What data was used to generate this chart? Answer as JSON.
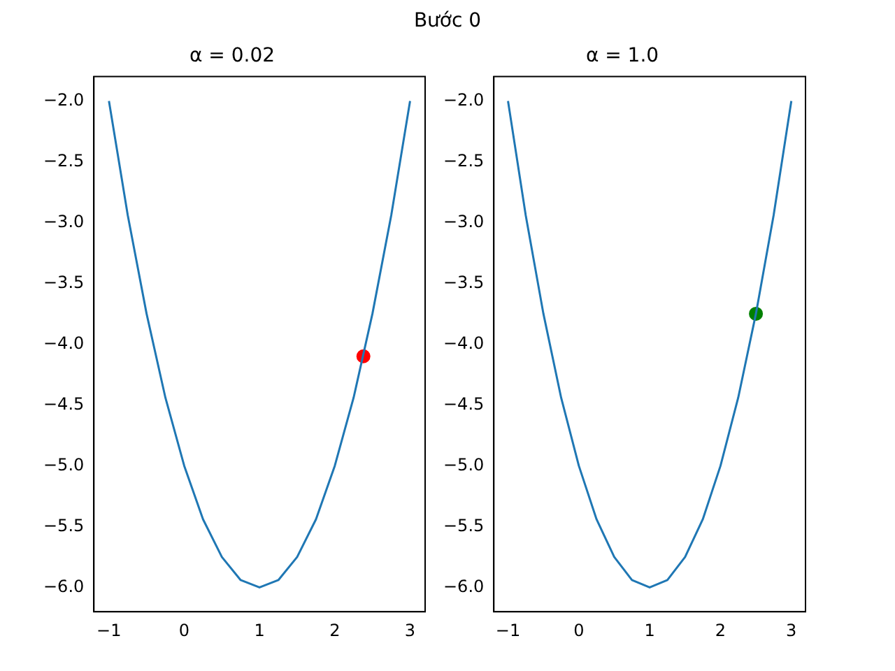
{
  "chart_data": [
    {
      "type": "line",
      "title": "α = 0.02",
      "annotations": [
        "Bước 0"
      ],
      "grid": false,
      "legend": false,
      "xlim": [
        -1.2,
        3.2
      ],
      "xticks": [
        {
          "value": -1,
          "label": "−1"
        },
        0,
        1,
        2,
        3
      ],
      "ylim": [
        -6.2,
        -1.8
      ],
      "yticks": [
        {
          "value": -6,
          "label": "−6.0"
        },
        {
          "value": -5.5,
          "label": "−5.5"
        },
        {
          "value": -5,
          "label": "−5.0"
        },
        {
          "value": -4.5,
          "label": "−4.5"
        },
        {
          "value": -4,
          "label": "−4.0"
        },
        {
          "value": -3.5,
          "label": "−3.5"
        },
        {
          "value": -3,
          "label": "−3.0"
        },
        {
          "value": -2.5,
          "label": "−2.5"
        },
        {
          "value": -2,
          "label": "−2.0"
        }
      ],
      "series": [
        {
          "color": "#1f77b4",
          "marker": "none",
          "x": [
            -1,
            -0.75,
            -0.5,
            -0.25,
            0,
            0.25,
            0.5,
            0.75,
            1,
            1.25,
            1.5,
            1.75,
            2,
            2.25,
            2.5,
            2.75,
            3
          ],
          "values": [
            -2,
            -2.94,
            -3.75,
            -4.44,
            -5,
            -5.44,
            -5.75,
            -5.94,
            -6,
            -5.94,
            -5.75,
            -5.44,
            -5,
            -4.44,
            -3.75,
            -2.94,
            -2
          ]
        },
        {
          "type": "scatter",
          "color": "#ff0000",
          "marker": "circle",
          "x": [
            2.38
          ],
          "values": [
            -4.1
          ]
        }
      ]
    },
    {
      "type": "line",
      "title": "α = 1.0",
      "grid": false,
      "legend": false,
      "xlim": [
        -1.2,
        3.2
      ],
      "xticks": [
        {
          "value": -1,
          "label": "−1"
        },
        0,
        1,
        2,
        3
      ],
      "ylim": [
        -6.2,
        -1.8
      ],
      "yticks": [
        {
          "value": -6,
          "label": "−6.0"
        },
        {
          "value": -5.5,
          "label": "−5.5"
        },
        {
          "value": -5,
          "label": "−5.0"
        },
        {
          "value": -4.5,
          "label": "−4.5"
        },
        {
          "value": -4,
          "label": "−4.0"
        },
        {
          "value": -3.5,
          "label": "−3.5"
        },
        {
          "value": -3,
          "label": "−3.0"
        },
        {
          "value": -2.5,
          "label": "−2.5"
        },
        {
          "value": -2,
          "label": "−2.0"
        }
      ],
      "series": [
        {
          "color": "#1f77b4",
          "marker": "none",
          "x": [
            -1,
            -0.75,
            -0.5,
            -0.25,
            0,
            0.25,
            0.5,
            0.75,
            1,
            1.25,
            1.5,
            1.75,
            2,
            2.25,
            2.5,
            2.75,
            3
          ],
          "values": [
            -2,
            -2.94,
            -3.75,
            -4.44,
            -5,
            -5.44,
            -5.75,
            -5.94,
            -6,
            -5.94,
            -5.75,
            -5.44,
            -5,
            -4.44,
            -3.75,
            -2.94,
            -2
          ]
        },
        {
          "type": "scatter",
          "color": "#008000",
          "marker": "circle",
          "x": [
            2.5
          ],
          "values": [
            -3.75
          ]
        }
      ]
    }
  ]
}
